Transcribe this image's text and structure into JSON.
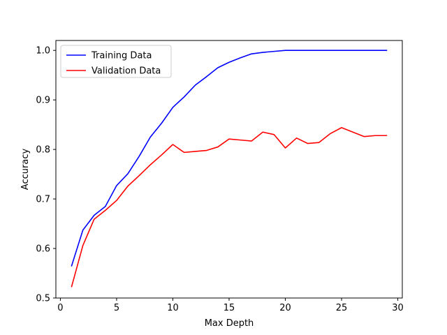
{
  "chart_data": {
    "type": "line",
    "title": "",
    "xlabel": "Max Depth",
    "ylabel": "Accuracy",
    "xlim": [
      -0.4,
      30.4
    ],
    "ylim": [
      0.5,
      1.02
    ],
    "xticks": [
      0,
      5,
      10,
      15,
      20,
      25,
      30
    ],
    "yticks": [
      0.5,
      0.6,
      0.7,
      0.8,
      0.9,
      1.0
    ],
    "xtick_labels": [
      "0",
      "5",
      "10",
      "15",
      "20",
      "25",
      "30"
    ],
    "ytick_labels": [
      "0.5",
      "0.6",
      "0.7",
      "0.8",
      "0.9",
      "1.0"
    ],
    "grid": false,
    "legend_position": "upper left",
    "x": [
      1,
      2,
      3,
      4,
      5,
      6,
      7,
      8,
      9,
      10,
      11,
      12,
      13,
      14,
      15,
      16,
      17,
      18,
      19,
      20,
      21,
      22,
      23,
      24,
      25,
      26,
      27,
      28,
      29
    ],
    "series": [
      {
        "name": "Training Data",
        "color": "#0000ff",
        "values": [
          0.565,
          0.637,
          0.667,
          0.685,
          0.727,
          0.751,
          0.786,
          0.825,
          0.853,
          0.885,
          0.906,
          0.93,
          0.947,
          0.965,
          0.976,
          0.985,
          0.993,
          0.996,
          0.998,
          1.0,
          1.0,
          1.0,
          1.0,
          1.0,
          1.0,
          1.0,
          1.0,
          1.0,
          1.0
        ]
      },
      {
        "name": "Validation Data",
        "color": "#ff0000",
        "values": [
          0.523,
          0.606,
          0.659,
          0.677,
          0.697,
          0.726,
          0.747,
          0.769,
          0.789,
          0.81,
          0.794,
          0.796,
          0.798,
          0.805,
          0.821,
          0.819,
          0.817,
          0.835,
          0.83,
          0.803,
          0.823,
          0.812,
          0.814,
          0.832,
          0.844,
          0.835,
          0.826,
          0.828,
          0.828
        ]
      }
    ]
  }
}
